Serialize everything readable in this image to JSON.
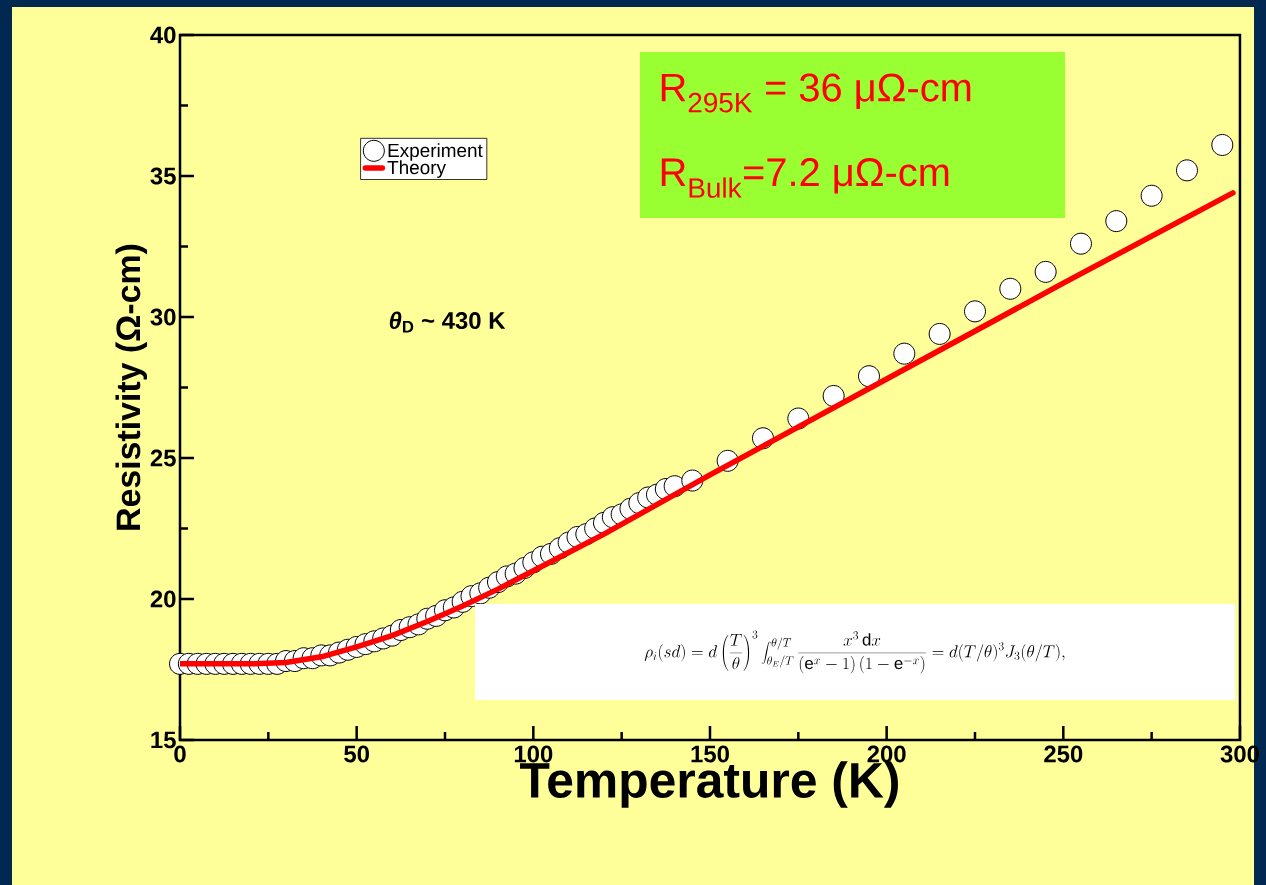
{
  "chart_data": {
    "type": "line",
    "xlabel": "Temperature (K)",
    "ylabel": "Resistivity (Ω-cm)",
    "xlim": [
      0,
      300
    ],
    "ylim": [
      15,
      40
    ],
    "xticks": [
      0,
      50,
      100,
      150,
      200,
      250,
      300
    ],
    "yticks": [
      15,
      20,
      25,
      30,
      35,
      40
    ],
    "legend": "top left",
    "grid": false,
    "series": [
      {
        "name": "Experiment",
        "type": "scatter",
        "marker": "circle",
        "color": "#ffffff",
        "x": [
          0,
          2.5,
          5,
          7.5,
          10,
          12.5,
          15,
          17.5,
          20,
          22.5,
          25,
          27.5,
          30,
          32.5,
          35,
          37.5,
          40,
          42.5,
          45,
          47.5,
          50,
          52.5,
          55,
          57.5,
          60,
          62.5,
          65,
          67.5,
          70,
          72.5,
          75,
          77.5,
          80,
          82.5,
          85,
          87.5,
          90,
          92.5,
          95,
          97.5,
          100,
          102.5,
          105,
          107.5,
          110,
          112.5,
          115,
          117.5,
          120,
          122.5,
          125,
          127.5,
          130,
          132.5,
          135,
          137.5,
          140,
          145,
          155,
          165,
          175,
          185,
          195,
          205,
          215,
          225,
          235,
          245,
          255,
          265,
          275,
          285,
          295
        ],
        "values": [
          17.7,
          17.7,
          17.7,
          17.7,
          17.7,
          17.7,
          17.7,
          17.7,
          17.7,
          17.7,
          17.7,
          17.7,
          17.8,
          17.8,
          17.9,
          17.9,
          18.0,
          18.0,
          18.1,
          18.2,
          18.3,
          18.4,
          18.5,
          18.6,
          18.7,
          18.9,
          19.0,
          19.1,
          19.3,
          19.4,
          19.6,
          19.7,
          19.9,
          20.1,
          20.2,
          20.4,
          20.6,
          20.8,
          20.9,
          21.1,
          21.3,
          21.5,
          21.6,
          21.8,
          22.0,
          22.2,
          22.3,
          22.5,
          22.7,
          22.9,
          23.0,
          23.2,
          23.4,
          23.6,
          23.7,
          23.9,
          24.0,
          24.2,
          24.9,
          25.7,
          26.4,
          27.2,
          27.9,
          28.7,
          29.4,
          30.2,
          31.0,
          31.6,
          32.6,
          33.4,
          34.3,
          35.2,
          36.1
        ]
      },
      {
        "name": "Theory",
        "color": "#ff0000",
        "x": [
          0,
          20,
          30,
          40,
          50,
          60,
          70,
          80,
          90,
          100,
          110,
          120,
          130,
          140,
          150,
          200,
          250,
          298
        ],
        "values": [
          17.7,
          17.7,
          17.75,
          17.95,
          18.3,
          18.7,
          19.2,
          19.75,
          20.35,
          21.0,
          21.65,
          22.3,
          23.0,
          23.7,
          24.4,
          27.8,
          31.2,
          34.4
        ]
      }
    ],
    "annotations": [
      "R$_{295K}$ = 36 μΩ-cm",
      "R$_{Bulk}$=7.2 μΩ-cm",
      "*θ*$_{D}$ ~ 430 K",
      "\\rho_i(sd) = d\\left(\\frac{T}{\\theta}\\right)^{3}\\int_{\\theta_E/T}^{\\theta/T}\\frac{x^{3}\\,\\mathrm{d}x}{(\\mathrm{e}^{x}-1)\\,(1-\\mathrm{e}^{-x})} = d(T/\\theta)^{3}J_{3}(\\theta/T),"
    ]
  }
}
